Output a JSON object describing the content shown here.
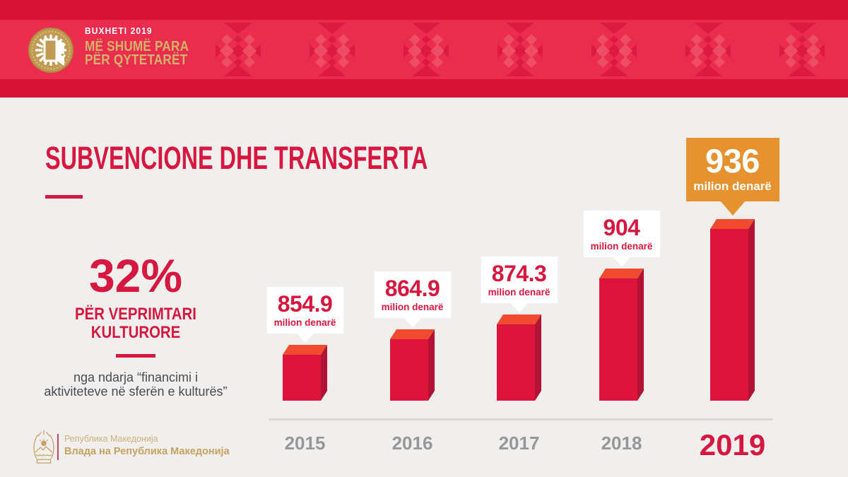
{
  "banner": {
    "kicker": "BUXHETI 2019",
    "title_line1": "MË SHUMË PARA",
    "title_line2": "PËR QYTETARËT"
  },
  "page": {
    "title": "SUBVENCIONE DHE TRANSFERTA"
  },
  "stat": {
    "percent": "32%",
    "label_line1": "PËR VEPRIMTARI",
    "label_line2": "KULTURORE",
    "note_line1": "nga ndarja “financimi i",
    "note_line2": "aktiviteteve në sferën e kulturës”"
  },
  "chart_data": {
    "type": "bar",
    "title": "SUBVENCIONE DHE TRANSFERTA",
    "unit": "milion denarë",
    "categories": [
      "2015",
      "2016",
      "2017",
      "2018",
      "2019"
    ],
    "values": [
      854.9,
      864.9,
      874.3,
      904,
      936
    ],
    "value_labels": [
      "854.9",
      "864.9",
      "874.3",
      "904",
      "936"
    ],
    "highlight_index": 4,
    "baseline_value": 825,
    "ylim": [
      825,
      960
    ],
    "grid": false,
    "legend": false,
    "colors": {
      "front": "#dc143c",
      "top": "#f04a31",
      "side": "#b21233",
      "highlight_callout": "#e6922f",
      "callout_text": "#d6173f",
      "year_label": "#97979b",
      "year_highlight": "#d6173f"
    }
  },
  "footer": {
    "line1": "Република Македонија",
    "line2": "Влада на Република Македонија"
  },
  "icons": {
    "logo": "coin-door-icon",
    "banner_pattern": "kilim-pattern",
    "footer_emblem": "coat-of-arms-icon"
  },
  "theme_colors": {
    "background": "#f0efee",
    "banner_band": "#ea2c4e",
    "banner_strip": "#d81237",
    "crimson": "#d6173f",
    "gold": "#d3b269",
    "note_text": "#4c4b52",
    "axis": "#d8d7d5"
  }
}
